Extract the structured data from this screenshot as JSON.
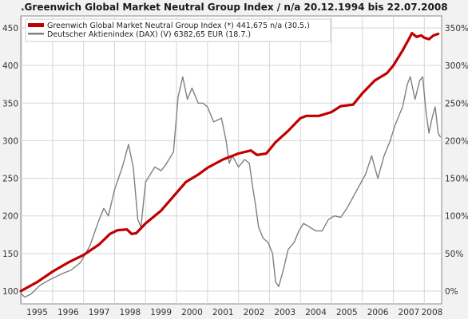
{
  "chart_data": {
    "type": "line",
    "title": ".Greenwich Global Market Neutral Group Index / n/a 20.12.1994 bis 22.07.2008",
    "x_ticks": [
      "1995",
      "1996",
      "1997",
      "1998",
      "1999",
      "2000",
      "2001",
      "2002",
      "2003",
      "2004",
      "2005",
      "2006",
      "2007",
      "2008"
    ],
    "y_left": {
      "ticks": [
        "100",
        "150",
        "200",
        "250",
        "300",
        "350",
        "400",
        "450"
      ],
      "min": 100,
      "max": 450
    },
    "y_right": {
      "ticks": [
        "0%",
        "50%",
        "100%",
        "150%",
        "200%",
        "250%",
        "300%",
        "350%"
      ],
      "min": 0,
      "max": 350
    },
    "x_range": [
      1994.97,
      2008.56
    ],
    "grid": true,
    "legend_position": "top-left",
    "series": [
      {
        "name": "Greenwich Global Market Neutral Group Index (*) 441,675 n/a (30.5.)",
        "color": "#c00000",
        "axis": "left",
        "points": [
          [
            1994.97,
            100
          ],
          [
            1995.5,
            112
          ],
          [
            1996.0,
            126
          ],
          [
            1996.5,
            138
          ],
          [
            1997.0,
            148
          ],
          [
            1997.5,
            162
          ],
          [
            1997.85,
            176
          ],
          [
            1998.1,
            181
          ],
          [
            1998.4,
            182
          ],
          [
            1998.55,
            176
          ],
          [
            1998.7,
            177
          ],
          [
            1999.0,
            190
          ],
          [
            1999.5,
            207
          ],
          [
            1999.9,
            226
          ],
          [
            2000.3,
            245
          ],
          [
            2000.7,
            255
          ],
          [
            2001.0,
            264
          ],
          [
            2001.5,
            275
          ],
          [
            2002.0,
            283
          ],
          [
            2002.4,
            287
          ],
          [
            2002.6,
            281
          ],
          [
            2002.9,
            283
          ],
          [
            2003.2,
            298
          ],
          [
            2003.6,
            313
          ],
          [
            2004.0,
            330
          ],
          [
            2004.2,
            333
          ],
          [
            2004.6,
            333
          ],
          [
            2005.0,
            338
          ],
          [
            2005.3,
            346
          ],
          [
            2005.7,
            348
          ],
          [
            2006.0,
            363
          ],
          [
            2006.4,
            380
          ],
          [
            2006.8,
            390
          ],
          [
            2007.0,
            400
          ],
          [
            2007.3,
            420
          ],
          [
            2007.5,
            435
          ],
          [
            2007.6,
            443
          ],
          [
            2007.75,
            438
          ],
          [
            2007.9,
            440
          ],
          [
            2008.0,
            437
          ],
          [
            2008.15,
            435
          ],
          [
            2008.3,
            440
          ],
          [
            2008.45,
            442
          ]
        ]
      },
      {
        "name": "Deutscher Aktienindex (DAX) (V) 6382,65 EUR (18.7.)",
        "color": "#808080",
        "axis": "left",
        "points": [
          [
            1994.97,
            97
          ],
          [
            1995.1,
            92
          ],
          [
            1995.3,
            96
          ],
          [
            1995.6,
            108
          ],
          [
            1995.9,
            115
          ],
          [
            1996.3,
            123
          ],
          [
            1996.6,
            128
          ],
          [
            1996.9,
            138
          ],
          [
            1997.2,
            160
          ],
          [
            1997.5,
            195
          ],
          [
            1997.65,
            210
          ],
          [
            1997.8,
            200
          ],
          [
            1998.0,
            235
          ],
          [
            1998.25,
            265
          ],
          [
            1998.45,
            295
          ],
          [
            1998.6,
            265
          ],
          [
            1998.75,
            195
          ],
          [
            1998.85,
            185
          ],
          [
            1999.0,
            245
          ],
          [
            1999.3,
            265
          ],
          [
            1999.5,
            260
          ],
          [
            1999.65,
            268
          ],
          [
            1999.9,
            285
          ],
          [
            2000.05,
            358
          ],
          [
            2000.2,
            385
          ],
          [
            2000.35,
            355
          ],
          [
            2000.5,
            370
          ],
          [
            2000.7,
            350
          ],
          [
            2000.85,
            350
          ],
          [
            2001.0,
            345
          ],
          [
            2001.2,
            325
          ],
          [
            2001.45,
            330
          ],
          [
            2001.6,
            300
          ],
          [
            2001.7,
            270
          ],
          [
            2001.8,
            280
          ],
          [
            2002.0,
            265
          ],
          [
            2002.2,
            275
          ],
          [
            2002.35,
            270
          ],
          [
            2002.45,
            240
          ],
          [
            2002.55,
            215
          ],
          [
            2002.65,
            185
          ],
          [
            2002.8,
            170
          ],
          [
            2002.95,
            165
          ],
          [
            2003.1,
            150
          ],
          [
            2003.2,
            112
          ],
          [
            2003.3,
            106
          ],
          [
            2003.45,
            128
          ],
          [
            2003.6,
            155
          ],
          [
            2003.8,
            165
          ],
          [
            2003.95,
            180
          ],
          [
            2004.1,
            190
          ],
          [
            2004.3,
            185
          ],
          [
            2004.5,
            180
          ],
          [
            2004.7,
            180
          ],
          [
            2004.9,
            195
          ],
          [
            2005.1,
            200
          ],
          [
            2005.3,
            198
          ],
          [
            2005.5,
            210
          ],
          [
            2005.7,
            225
          ],
          [
            2005.9,
            240
          ],
          [
            2006.1,
            255
          ],
          [
            2006.3,
            280
          ],
          [
            2006.4,
            265
          ],
          [
            2006.5,
            250
          ],
          [
            2006.7,
            280
          ],
          [
            2006.9,
            300
          ],
          [
            2007.05,
            320
          ],
          [
            2007.3,
            345
          ],
          [
            2007.45,
            375
          ],
          [
            2007.55,
            385
          ],
          [
            2007.7,
            355
          ],
          [
            2007.85,
            380
          ],
          [
            2007.95,
            385
          ],
          [
            2008.05,
            340
          ],
          [
            2008.15,
            310
          ],
          [
            2008.25,
            330
          ],
          [
            2008.35,
            345
          ],
          [
            2008.45,
            310
          ],
          [
            2008.52,
            305
          ]
        ]
      }
    ]
  }
}
